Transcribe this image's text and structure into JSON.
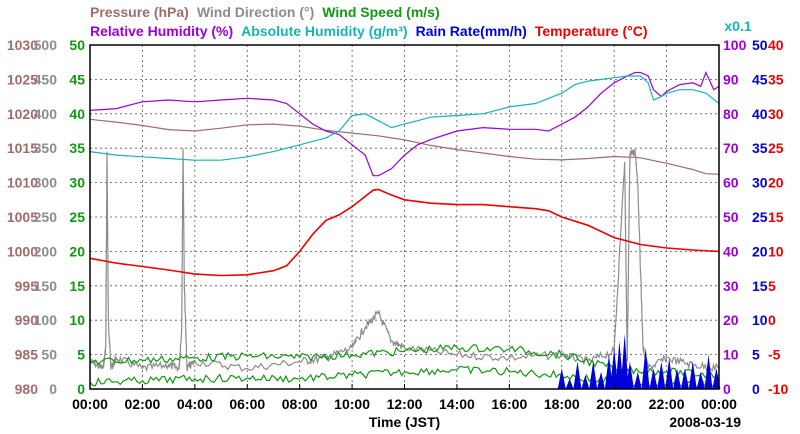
{
  "chart_data": {
    "type": "line",
    "title_rows": [
      [
        {
          "key": "pressure",
          "text": "Pressure (hPa)",
          "color": "#a06d6d"
        },
        {
          "key": "wdir",
          "text": "Wind Direction (°)",
          "color": "#8c8c8c"
        },
        {
          "key": "wspd",
          "text": "Wind Speed (m/s)",
          "color": "#119911"
        }
      ],
      [
        {
          "key": "rh",
          "text": "Relative Humidity (%)",
          "color": "#9b00d6"
        },
        {
          "key": "ah",
          "text": "Absolute Humidity (g/m³)",
          "color": "#18b4b4"
        },
        {
          "key": "rain",
          "text": "Rain Rate(mm/h)",
          "color": "#0000dd"
        },
        {
          "key": "temp",
          "text": "Temperature (°C)",
          "color": "#ee0000"
        }
      ]
    ],
    "rain_scale_note": "x0.1",
    "xlabel": "Time (JST)",
    "date": "2008-03-19",
    "x_ticks": [
      "00:00",
      "02:00",
      "04:00",
      "06:00",
      "08:00",
      "10:00",
      "12:00",
      "14:00",
      "16:00",
      "18:00",
      "20:00",
      "22:00",
      "00:00"
    ],
    "xlim": [
      0,
      24
    ],
    "axes": [
      {
        "key": "pressure",
        "side": "left",
        "color": "#a06d6d",
        "lim": [
          980,
          1030
        ],
        "ticks": [
          980,
          985,
          990,
          995,
          1000,
          1005,
          1010,
          1015,
          1020,
          1025,
          1030
        ]
      },
      {
        "key": "wdir",
        "side": "left",
        "color": "#8c8c8c",
        "lim": [
          0,
          500
        ],
        "ticks": [
          0,
          50,
          100,
          150,
          200,
          250,
          300,
          350,
          400,
          450,
          500
        ]
      },
      {
        "key": "wspd",
        "side": "left",
        "color": "#119911",
        "lim": [
          0,
          50
        ],
        "ticks": [
          0,
          5,
          10,
          15,
          20,
          25,
          30,
          35,
          40,
          45,
          50
        ]
      },
      {
        "key": "rh",
        "side": "right",
        "color": "#9b00d6",
        "lim": [
          0,
          100
        ],
        "ticks": [
          0,
          10,
          20,
          30,
          40,
          50,
          60,
          70,
          80,
          90,
          100
        ]
      },
      {
        "key": "rain",
        "side": "right",
        "color": "#0000dd",
        "lim": [
          0,
          50
        ],
        "ticks": [
          0,
          5,
          10,
          15,
          20,
          25,
          30,
          35,
          40,
          45,
          50
        ]
      },
      {
        "key": "temp",
        "side": "right",
        "color": "#ee0000",
        "lim": [
          -10,
          40
        ],
        "ticks": [
          -10,
          -5,
          0,
          5,
          10,
          15,
          20,
          25,
          30,
          35,
          40
        ]
      }
    ],
    "series": [
      {
        "name": "Pressure",
        "key": "pressure",
        "axis": "pressure",
        "color": "#a06d6d",
        "x": [
          0,
          1,
          2,
          3,
          4,
          5,
          6,
          7,
          8,
          9,
          10,
          11,
          12,
          13,
          14,
          15,
          16,
          17,
          18,
          19,
          20,
          21,
          22,
          23,
          23.5,
          24
        ],
        "y": [
          1019.2,
          1018.8,
          1018.3,
          1017.7,
          1017.5,
          1017.9,
          1018.4,
          1018.5,
          1018.2,
          1017.6,
          1017.2,
          1016.8,
          1016.2,
          1015.4,
          1014.8,
          1014.3,
          1013.8,
          1013.4,
          1013.3,
          1013.5,
          1013.8,
          1013.6,
          1012.8,
          1011.9,
          1011.3,
          1011.2
        ]
      },
      {
        "name": "Wind Direction",
        "key": "wdir",
        "axis": "wdir",
        "color": "#8c8c8c",
        "style": "noisy",
        "x": [
          0,
          0.5,
          0.6,
          0.65,
          0.7,
          0.8,
          1,
          2,
          3,
          3.4,
          3.5,
          3.55,
          3.6,
          3.7,
          4,
          6,
          8,
          9,
          10,
          10.5,
          11,
          11.5,
          12,
          14,
          16,
          18,
          19,
          20,
          20.4,
          20.5,
          20.6,
          20.8,
          20.9,
          21.1,
          21.3,
          22,
          23,
          24
        ],
        "y": [
          40,
          30,
          60,
          345,
          100,
          30,
          45,
          30,
          35,
          30,
          90,
          350,
          150,
          30,
          40,
          30,
          40,
          45,
          60,
          90,
          110,
          70,
          60,
          50,
          45,
          50,
          40,
          55,
          330,
          40,
          340,
          345,
          300,
          60,
          30,
          45,
          35,
          30
        ]
      },
      {
        "name": "Wind Speed",
        "key": "wspd",
        "axis": "wspd",
        "color": "#119911",
        "style": "noisy",
        "x": [
          0,
          2,
          4,
          6,
          8,
          10,
          12,
          14,
          16,
          18,
          20,
          22,
          24
        ],
        "y": [
          4,
          4.2,
          4.5,
          4.8,
          4.6,
          5,
          5.5,
          6,
          5.8,
          5,
          3,
          2.5,
          2
        ]
      },
      {
        "name": "Wind Speed (min)",
        "key": "wspd_min",
        "axis": "wspd",
        "color": "#119911",
        "style": "noisy",
        "x": [
          0,
          2,
          4,
          6,
          8,
          10,
          12,
          14,
          16,
          18,
          20,
          22,
          24
        ],
        "y": [
          1,
          1.2,
          1.5,
          1.6,
          1.5,
          2,
          2.5,
          2.8,
          2.5,
          2,
          1,
          0.8,
          0.6
        ]
      },
      {
        "name": "Relative Humidity",
        "key": "rh",
        "axis": "rh",
        "color": "#9b00d6",
        "x": [
          0,
          1,
          2,
          3,
          4,
          5,
          6,
          7,
          7.5,
          8,
          8.5,
          9,
          9.5,
          10,
          10.5,
          10.8,
          11,
          11.5,
          12,
          12.5,
          13,
          14,
          15,
          16,
          17,
          17.5,
          18,
          18.5,
          19,
          19.5,
          20,
          20.5,
          20.8,
          21,
          21.3,
          21.5,
          21.8,
          22,
          22.5,
          23,
          23.3,
          23.5,
          23.8,
          24
        ],
        "y": [
          81,
          81.5,
          83.5,
          84,
          83.5,
          84,
          84.5,
          84,
          83,
          80,
          77,
          75,
          74,
          71,
          68,
          62,
          62,
          64,
          68,
          71,
          72.5,
          75,
          76,
          75.5,
          75.5,
          75,
          77,
          79,
          82,
          86,
          89,
          91,
          92,
          92,
          91,
          87,
          85,
          86.5,
          88.5,
          89,
          88,
          92,
          87,
          88
        ]
      },
      {
        "name": "Absolute Humidity",
        "key": "ah",
        "axis": "ah",
        "color": "#18b4b4",
        "x": [
          0,
          1,
          2,
          3,
          4,
          5,
          6,
          7,
          8,
          9,
          9.5,
          10,
          10.5,
          11,
          11.5,
          12,
          12.5,
          13,
          14,
          15,
          16,
          17,
          17.5,
          18,
          18.5,
          19,
          19.5,
          20,
          20.5,
          21,
          21.3,
          21.5,
          21.8,
          22,
          22.5,
          23,
          23.5,
          24
        ],
        "y": [
          69,
          68,
          67.5,
          67,
          66.5,
          66.5,
          67.5,
          69,
          71,
          73,
          75,
          79.5,
          80,
          78,
          76,
          77,
          78,
          79,
          79.5,
          80,
          82,
          83,
          84.5,
          86,
          88.5,
          89.5,
          90,
          90.5,
          91,
          91,
          89,
          84,
          85,
          86,
          87,
          87,
          86,
          83
        ]
      },
      {
        "name": "Temperature",
        "key": "temp",
        "axis": "temp",
        "color": "#ee0000",
        "x": [
          0,
          1,
          2,
          3,
          3.5,
          4,
          5,
          6,
          7,
          7.5,
          8,
          8.5,
          9,
          9.5,
          10,
          10.5,
          10.8,
          11,
          11.5,
          12,
          13,
          14,
          15,
          16,
          17,
          17.5,
          18,
          19,
          20,
          21,
          22,
          23,
          24
        ],
        "y": [
          9,
          8.3,
          7.8,
          7.3,
          7,
          6.7,
          6.5,
          6.6,
          7.2,
          7.9,
          10,
          12.5,
          14.5,
          15.3,
          16.5,
          18,
          18.9,
          19,
          18.2,
          17.5,
          17,
          16.8,
          16.8,
          16.5,
          16.2,
          15.9,
          15,
          13.8,
          12,
          11,
          10.5,
          10.2,
          10
        ]
      },
      {
        "name": "Rain Rate",
        "key": "rain",
        "axis": "rain",
        "color": "#0000dd",
        "style": "bars",
        "x": [
          18.0,
          18.3,
          18.6,
          18.9,
          19.2,
          19.5,
          19.8,
          20.0,
          20.2,
          20.4,
          20.6,
          20.9,
          21.2,
          21.5,
          21.8,
          22.1,
          22.4,
          22.7,
          23.0,
          23.3,
          23.6,
          23.9
        ],
        "y": [
          3,
          1.5,
          4,
          2,
          4,
          2.5,
          5,
          6,
          7,
          8,
          4,
          2.5,
          6,
          3,
          4,
          4.5,
          3,
          3,
          4,
          2.5,
          5,
          3
        ]
      }
    ]
  }
}
